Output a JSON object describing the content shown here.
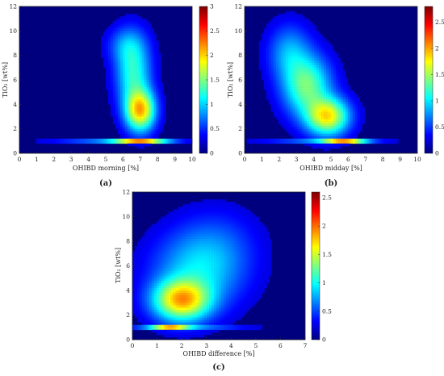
{
  "colormap": [
    "#00007f",
    "#0000ff",
    "#007fff",
    "#00ffff",
    "#7fff7f",
    "#ffff00",
    "#ff7f00",
    "#ff0000",
    "#7f0000"
  ],
  "chart_data": [
    {
      "type": "heatmap",
      "panel_label": "(a)",
      "xlabel": "OHIBD morning [%]",
      "ylabel": "TiO₂ [wt%]",
      "xlim": [
        0,
        10
      ],
      "ylim": [
        0,
        12
      ],
      "x_ticks": [
        0,
        1,
        2,
        3,
        4,
        5,
        6,
        7,
        8,
        9,
        10
      ],
      "y_ticks": [
        0,
        2,
        4,
        6,
        8,
        10,
        12
      ],
      "colorbar": {
        "min": 0,
        "max": 3,
        "ticks": [
          0,
          0.5,
          1,
          1.5,
          2,
          2.5,
          3
        ]
      },
      "density": [
        {
          "x": 5.5,
          "y": 1.0,
          "sx": 2.2,
          "sy": 0.07,
          "a": 0.35
        },
        {
          "x": 7.0,
          "y": 1.0,
          "sx": 1.0,
          "sy": 0.09,
          "a": 1.0
        },
        {
          "x": 7.0,
          "y": 3.5,
          "sx": 0.55,
          "sy": 1.1,
          "a": 0.6
        },
        {
          "x": 6.6,
          "y": 6.5,
          "sx": 0.65,
          "sy": 1.9,
          "a": 0.3
        },
        {
          "x": 6.2,
          "y": 8.8,
          "sx": 0.7,
          "sy": 1.0,
          "a": 0.13
        }
      ]
    },
    {
      "type": "heatmap",
      "panel_label": "(b)",
      "xlabel": "OHIBD midday [%]",
      "ylabel": "TiO₂ [wt%]",
      "xlim": [
        0,
        10
      ],
      "ylim": [
        0,
        12
      ],
      "x_ticks": [
        0,
        1,
        2,
        3,
        4,
        5,
        6,
        7,
        8,
        9,
        10
      ],
      "y_ticks": [
        0,
        2,
        4,
        6,
        8,
        10,
        12
      ],
      "colorbar": {
        "min": 0,
        "max": 2.8,
        "ticks": [
          0,
          0.5,
          1,
          1.5,
          2,
          2.5
        ]
      },
      "density": [
        {
          "x": 4.5,
          "y": 1.0,
          "sx": 2.2,
          "sy": 0.07,
          "a": 0.3
        },
        {
          "x": 5.8,
          "y": 1.0,
          "sx": 0.8,
          "sy": 0.09,
          "a": 1.0
        },
        {
          "x": 4.8,
          "y": 3.0,
          "sx": 0.8,
          "sy": 1.0,
          "a": 0.55
        },
        {
          "x": 3.6,
          "y": 5.5,
          "sx": 0.9,
          "sy": 1.6,
          "a": 0.38
        },
        {
          "x": 2.6,
          "y": 8.2,
          "sx": 0.8,
          "sy": 1.5,
          "a": 0.18
        }
      ]
    },
    {
      "type": "heatmap",
      "panel_label": "(c)",
      "xlabel": "OHIBD difference [%]",
      "ylabel": "TiO₂ [wt%]",
      "xlim": [
        0,
        7
      ],
      "ylim": [
        0,
        12
      ],
      "x_ticks": [
        0,
        1,
        2,
        3,
        4,
        5,
        6,
        7
      ],
      "y_ticks": [
        0,
        2,
        4,
        6,
        8,
        10,
        12
      ],
      "colorbar": {
        "min": 0,
        "max": 2.6,
        "ticks": [
          0,
          0.5,
          1,
          1.5,
          2,
          2.5
        ]
      },
      "density": [
        {
          "x": 2.0,
          "y": 1.0,
          "sx": 1.6,
          "sy": 0.07,
          "a": 0.3
        },
        {
          "x": 1.5,
          "y": 1.0,
          "sx": 0.5,
          "sy": 0.08,
          "a": 1.0
        },
        {
          "x": 2.0,
          "y": 3.2,
          "sx": 0.75,
          "sy": 1.1,
          "a": 0.6
        },
        {
          "x": 2.7,
          "y": 5.6,
          "sx": 1.2,
          "sy": 2.0,
          "a": 0.22
        },
        {
          "x": 3.4,
          "y": 8.0,
          "sx": 1.1,
          "sy": 1.8,
          "a": 0.07
        }
      ]
    }
  ]
}
